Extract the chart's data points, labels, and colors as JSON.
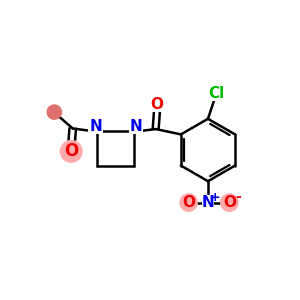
{
  "bg_color": "#ffffff",
  "bond_color": "#000000",
  "bond_width": 1.8,
  "atom_colors": {
    "N": "#0000ee",
    "O": "#ee0000",
    "Cl": "#00bb00",
    "C": "#000000"
  },
  "font_size": 10,
  "figsize": [
    3.0,
    3.0
  ],
  "dpi": 100
}
